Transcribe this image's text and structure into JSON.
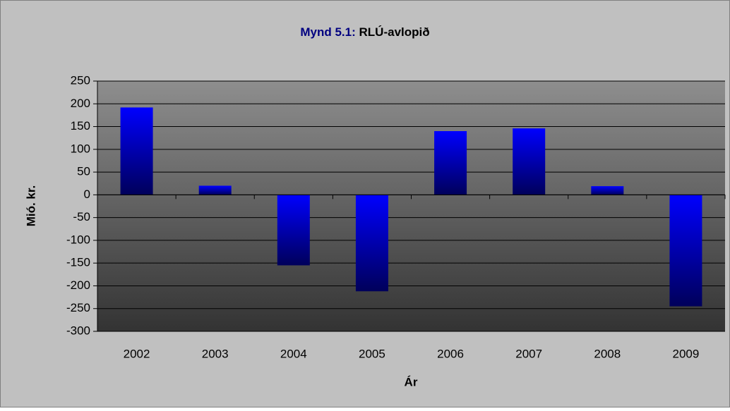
{
  "chart_data": {
    "type": "bar",
    "title": {
      "label": "Mynd 5.1:",
      "text": "RLÚ-avlopið"
    },
    "xlabel": "Ár",
    "ylabel": "Mió. kr.",
    "categories": [
      "2002",
      "2003",
      "2004",
      "2005",
      "2006",
      "2007",
      "2008",
      "2009"
    ],
    "values": [
      192,
      20,
      -155,
      -212,
      140,
      146,
      19,
      -245
    ],
    "color": "#0000ff",
    "ylim": [
      -300,
      250
    ],
    "yticks": [
      -300,
      -250,
      -200,
      -150,
      -100,
      -50,
      0,
      50,
      100,
      150,
      200,
      250
    ],
    "grid": true
  }
}
